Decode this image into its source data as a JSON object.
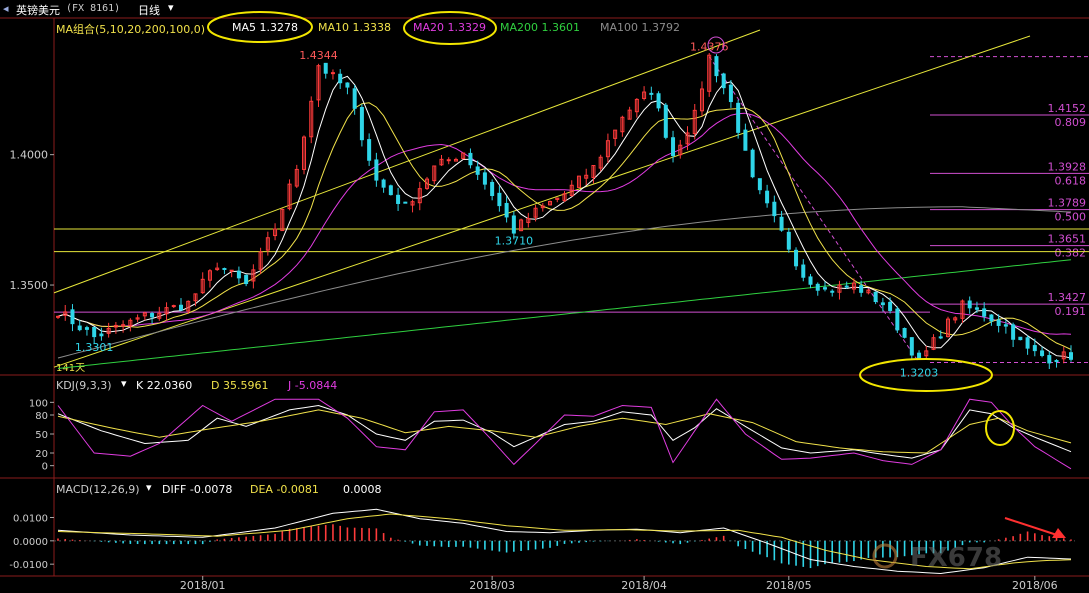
{
  "window": {
    "symbol_label": "英镑美元",
    "code": "(FX 8161)",
    "period": "日线",
    "days_label": "141天"
  },
  "colors": {
    "up": "#ff3b3b",
    "down": "#2fd5e8",
    "ma5": "#ffffff",
    "ma10": "#f0e14a",
    "ma20": "#e03ce0",
    "ma100": "#8c8c8c",
    "ma200": "#30d040",
    "channel": "#e6e63a",
    "fib": "#d14fd1",
    "annot": "#f2e600",
    "frame": "#8a1c1c"
  },
  "legend": {
    "group": "MA组合(5,10,20,200,100,0)",
    "ma5": "MA5 1.3278",
    "ma10": "MA10 1.3338",
    "ma20": "MA20 1.3329",
    "ma200": "MA200 1.3601",
    "ma100": "MA100 1.3792"
  },
  "kdj_legend": {
    "name": "KDJ(9,3,3)",
    "k": "K 22.0360",
    "d": "D 35.5961",
    "j": "J -5.0844"
  },
  "macd_legend": {
    "name": "MACD(12,26,9)",
    "diff": "DIFF -0.0078",
    "dea": "DEA -0.0081",
    "macd": "0.0008"
  },
  "watermark": "FX678",
  "chart_data": {
    "type": "candlestick",
    "price_ticks": [
      "1.4000",
      "1.3500"
    ],
    "price_tick_values": [
      1.4,
      1.35
    ],
    "ylim": [
      1.3155,
      1.4455
    ],
    "kdj_ticks": [
      "100",
      "80",
      "50",
      "20",
      "0"
    ],
    "kdj_tick_values": [
      100,
      80,
      50,
      20,
      0
    ],
    "kdj_ylim": [
      -10,
      110
    ],
    "macd_ticks": [
      "0.0100",
      "0.0000",
      "-0.0100"
    ],
    "macd_tick_values": [
      0.01,
      0.0,
      -0.01
    ],
    "macd_ylim": [
      -0.0125,
      0.0175
    ],
    "x_tick_labels": [
      "2018/01",
      "2018/03",
      "2018/04",
      "2018/05",
      "2018/06"
    ],
    "x_tick_index": [
      20,
      60,
      81,
      101,
      135
    ],
    "bar_count": 141,
    "price_annotations": [
      {
        "text": "1.4344",
        "index": 36,
        "value": 1.4344,
        "pos": "above",
        "color": "#ff5a5a"
      },
      {
        "text": "1.4376",
        "index": 90,
        "value": 1.4376,
        "pos": "above",
        "color": "#ff5a5a"
      },
      {
        "text": "1.3710",
        "index": 63,
        "value": 1.371,
        "pos": "below",
        "color": "#2fd5e8"
      },
      {
        "text": "1.3301",
        "index": 5,
        "value": 1.3301,
        "pos": "below",
        "color": "#2fd5e8"
      },
      {
        "text": "1.3203",
        "index": 119,
        "value": 1.3203,
        "pos": "below",
        "color": "#2fd5e8"
      }
    ],
    "fib_levels": [
      {
        "value": 1.4376,
        "price": "",
        "ratio": ""
      },
      {
        "value": 1.4152,
        "price": "1.4152",
        "ratio": "0.809"
      },
      {
        "value": 1.3928,
        "price": "1.3928",
        "ratio": "0.618"
      },
      {
        "value": 1.3789,
        "price": "1.3789",
        "ratio": "0.500"
      },
      {
        "value": 1.3651,
        "price": "1.3651",
        "ratio": "0.382"
      },
      {
        "value": 1.3427,
        "price": "1.3427",
        "ratio": "0.191"
      },
      {
        "value": 1.3203,
        "price": "",
        "ratio": ""
      }
    ],
    "horizontal_lines": [
      1.3715,
      1.3628
    ],
    "anchors": [
      [
        0,
        1.34
      ],
      [
        5,
        1.3301
      ],
      [
        12,
        1.338
      ],
      [
        18,
        1.343
      ],
      [
        22,
        1.358
      ],
      [
        26,
        1.35
      ],
      [
        30,
        1.372
      ],
      [
        33,
        1.395
      ],
      [
        36,
        1.4344
      ],
      [
        40,
        1.425
      ],
      [
        44,
        1.39
      ],
      [
        48,
        1.38
      ],
      [
        52,
        1.395
      ],
      [
        56,
        1.401
      ],
      [
        60,
        1.385
      ],
      [
        63,
        1.371
      ],
      [
        66,
        1.378
      ],
      [
        70,
        1.385
      ],
      [
        74,
        1.395
      ],
      [
        78,
        1.415
      ],
      [
        82,
        1.425
      ],
      [
        85,
        1.4
      ],
      [
        88,
        1.415
      ],
      [
        90,
        1.4376
      ],
      [
        93,
        1.42
      ],
      [
        96,
        1.39
      ],
      [
        100,
        1.37
      ],
      [
        103,
        1.354
      ],
      [
        106,
        1.348
      ],
      [
        110,
        1.35
      ],
      [
        114,
        1.343
      ],
      [
        117,
        1.33
      ],
      [
        119,
        1.3203
      ],
      [
        122,
        1.332
      ],
      [
        125,
        1.342
      ],
      [
        128,
        1.339
      ],
      [
        131,
        1.334
      ],
      [
        134,
        1.325
      ],
      [
        137,
        1.322
      ],
      [
        140,
        1.323
      ]
    ],
    "kdj_anchors": {
      "k": [
        [
          0,
          82
        ],
        [
          6,
          55
        ],
        [
          12,
          35
        ],
        [
          18,
          40
        ],
        [
          22,
          75
        ],
        [
          26,
          62
        ],
        [
          32,
          88
        ],
        [
          36,
          95
        ],
        [
          40,
          80
        ],
        [
          44,
          50
        ],
        [
          48,
          40
        ],
        [
          52,
          70
        ],
        [
          56,
          72
        ],
        [
          60,
          52
        ],
        [
          63,
          30
        ],
        [
          66,
          45
        ],
        [
          70,
          65
        ],
        [
          74,
          70
        ],
        [
          78,
          85
        ],
        [
          82,
          80
        ],
        [
          85,
          40
        ],
        [
          88,
          60
        ],
        [
          91,
          90
        ],
        [
          95,
          62
        ],
        [
          100,
          28
        ],
        [
          104,
          20
        ],
        [
          110,
          25
        ],
        [
          114,
          18
        ],
        [
          118,
          12
        ],
        [
          122,
          25
        ],
        [
          126,
          88
        ],
        [
          129,
          82
        ],
        [
          132,
          60
        ],
        [
          135,
          45
        ],
        [
          140,
          22
        ]
      ],
      "d": [
        [
          0,
          78
        ],
        [
          8,
          58
        ],
        [
          14,
          45
        ],
        [
          22,
          60
        ],
        [
          28,
          70
        ],
        [
          36,
          88
        ],
        [
          42,
          75
        ],
        [
          48,
          52
        ],
        [
          54,
          62
        ],
        [
          60,
          55
        ],
        [
          66,
          45
        ],
        [
          72,
          62
        ],
        [
          78,
          75
        ],
        [
          84,
          65
        ],
        [
          90,
          82
        ],
        [
          96,
          68
        ],
        [
          102,
          38
        ],
        [
          108,
          28
        ],
        [
          114,
          22
        ],
        [
          120,
          20
        ],
        [
          126,
          65
        ],
        [
          130,
          75
        ],
        [
          134,
          55
        ],
        [
          140,
          36
        ]
      ],
      "j": [
        [
          0,
          95
        ],
        [
          5,
          20
        ],
        [
          10,
          15
        ],
        [
          14,
          35
        ],
        [
          20,
          95
        ],
        [
          24,
          70
        ],
        [
          30,
          105
        ],
        [
          36,
          105
        ],
        [
          40,
          75
        ],
        [
          44,
          30
        ],
        [
          48,
          25
        ],
        [
          52,
          85
        ],
        [
          56,
          88
        ],
        [
          60,
          40
        ],
        [
          63,
          2
        ],
        [
          66,
          35
        ],
        [
          70,
          80
        ],
        [
          74,
          78
        ],
        [
          78,
          95
        ],
        [
          82,
          92
        ],
        [
          85,
          5
        ],
        [
          88,
          55
        ],
        [
          91,
          105
        ],
        [
          95,
          50
        ],
        [
          100,
          10
        ],
        [
          104,
          12
        ],
        [
          110,
          20
        ],
        [
          114,
          8
        ],
        [
          118,
          2
        ],
        [
          122,
          25
        ],
        [
          126,
          105
        ],
        [
          129,
          100
        ],
        [
          132,
          62
        ],
        [
          135,
          30
        ],
        [
          140,
          -5
        ]
      ]
    },
    "macd_anchors": {
      "diff": [
        [
          0,
          0.0045
        ],
        [
          10,
          0.0025
        ],
        [
          20,
          0.0015
        ],
        [
          30,
          0.0055
        ],
        [
          38,
          0.0118
        ],
        [
          44,
          0.0135
        ],
        [
          50,
          0.0095
        ],
        [
          56,
          0.0075
        ],
        [
          62,
          0.004
        ],
        [
          68,
          0.0035
        ],
        [
          74,
          0.0045
        ],
        [
          80,
          0.005
        ],
        [
          86,
          0.0035
        ],
        [
          92,
          0.0055
        ],
        [
          98,
          -0.001
        ],
        [
          104,
          -0.008
        ],
        [
          110,
          -0.011
        ],
        [
          116,
          -0.013
        ],
        [
          122,
          -0.014
        ],
        [
          128,
          -0.0115
        ],
        [
          134,
          -0.007
        ],
        [
          140,
          -0.0078
        ]
      ],
      "dea": [
        [
          0,
          0.004
        ],
        [
          12,
          0.003
        ],
        [
          22,
          0.002
        ],
        [
          32,
          0.0045
        ],
        [
          40,
          0.0095
        ],
        [
          46,
          0.0115
        ],
        [
          54,
          0.0095
        ],
        [
          62,
          0.0065
        ],
        [
          70,
          0.0045
        ],
        [
          78,
          0.0048
        ],
        [
          86,
          0.0042
        ],
        [
          94,
          0.0045
        ],
        [
          100,
          0.0015
        ],
        [
          106,
          -0.004
        ],
        [
          112,
          -0.008
        ],
        [
          120,
          -0.011
        ],
        [
          126,
          -0.012
        ],
        [
          132,
          -0.0095
        ],
        [
          136,
          -0.0085
        ],
        [
          140,
          -0.0081
        ]
      ]
    }
  }
}
